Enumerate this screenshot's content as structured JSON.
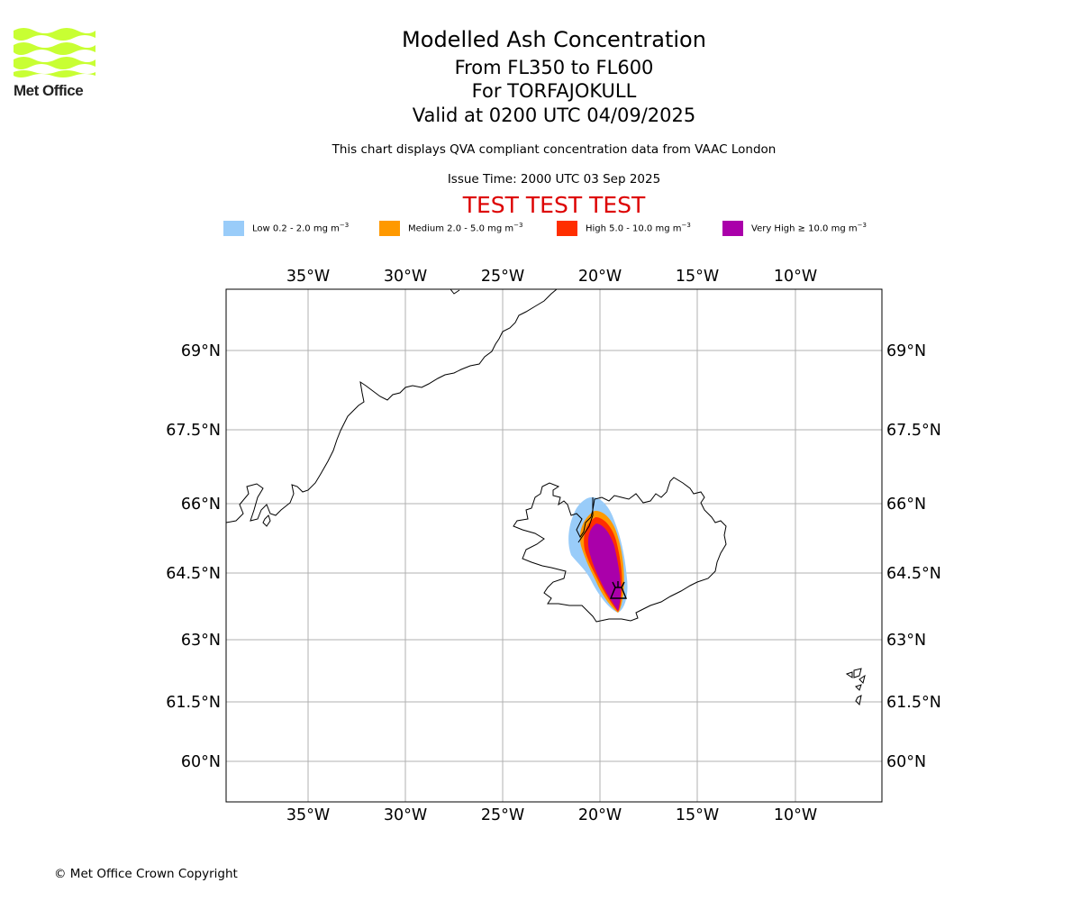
{
  "header": {
    "logo_text": "Met Office",
    "title": "Modelled Ash Concentration",
    "flight_levels": "From FL350 to FL600",
    "volcano": "For TORFAJOKULL",
    "valid_time": "Valid at 0200 UTC 04/09/2025",
    "description": "This chart displays QVA compliant concentration data from VAAC London",
    "issue_time": "Issue Time: 2000 UTC 03 Sep 2025",
    "test_banner": "TEST TEST TEST"
  },
  "colors": {
    "low": "#99ccf9",
    "medium": "#ff9900",
    "high": "#ff2e00",
    "very_high": "#aa00aa",
    "test_banner": "#dd0000",
    "logo": "#c8ff33"
  },
  "legend": [
    {
      "level": "Low",
      "text": "Low 0.2 - 2.0 mg m",
      "unit_exp": "−3",
      "color": "#99ccf9"
    },
    {
      "level": "Medium",
      "text": "Medium 2.0 - 5.0 mg m",
      "unit_exp": "−3",
      "color": "#ff9900"
    },
    {
      "level": "High",
      "text": "High 5.0 - 10.0 mg m",
      "unit_exp": "−3",
      "color": "#ff2e00"
    },
    {
      "level": "Very High",
      "text": "Very High ≥ 10.0 mg m",
      "unit_exp": "−3",
      "color": "#aa00aa"
    }
  ],
  "map": {
    "lon_ticks": [
      "35°W",
      "30°W",
      "25°W",
      "20°W",
      "15°W",
      "10°W"
    ],
    "lat_ticks": [
      "69°N",
      "67.5°N",
      "66°N",
      "64.5°N",
      "63°N",
      "61.5°N",
      "60°N"
    ],
    "volcano_marker": "volcano-symbol"
  },
  "footer": {
    "copyright": "© Met Office Crown Copyright"
  }
}
